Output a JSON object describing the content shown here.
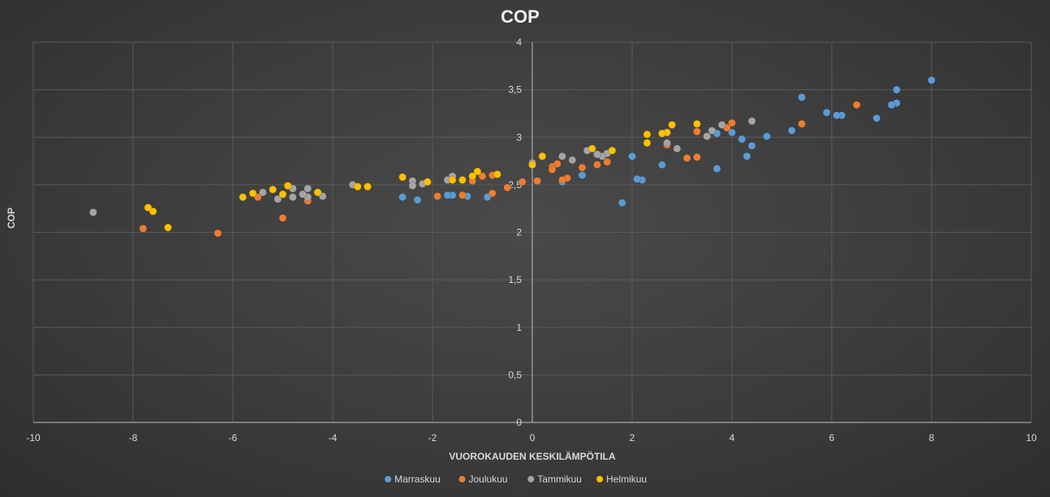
{
  "chart_data": {
    "type": "scatter",
    "title": "COP",
    "xlabel": "VUOROKAUDEN KESKILÄMPÖTILA",
    "ylabel": "COP",
    "xlim": [
      -10,
      10
    ],
    "ylim": [
      0,
      4
    ],
    "xticks": [
      -10,
      -8,
      -6,
      -4,
      -2,
      0,
      2,
      4,
      6,
      8,
      10
    ],
    "yticks": [
      0,
      0.5,
      1,
      1.5,
      2,
      2.5,
      3,
      3.5,
      4
    ],
    "xtick_labels": [
      "-10",
      "-8",
      "-6",
      "-4",
      "-2",
      "0",
      "2",
      "4",
      "6",
      "8",
      "10"
    ],
    "ytick_labels": [
      "0",
      "0,5",
      "1",
      "1,5",
      "2",
      "2,5",
      "3",
      "3,5",
      "4"
    ],
    "grid": true,
    "legend_position": "bottom",
    "series": [
      {
        "name": "Marraskuu",
        "color": "#5b9bd5",
        "points": [
          [
            8.0,
            3.6
          ],
          [
            7.3,
            3.5
          ],
          [
            7.3,
            3.36
          ],
          [
            7.2,
            3.34
          ],
          [
            6.9,
            3.2
          ],
          [
            6.2,
            3.23
          ],
          [
            6.1,
            3.23
          ],
          [
            5.9,
            3.26
          ],
          [
            5.4,
            3.42
          ],
          [
            5.2,
            3.07
          ],
          [
            4.7,
            3.01
          ],
          [
            4.4,
            2.91
          ],
          [
            4.3,
            2.8
          ],
          [
            4.2,
            2.98
          ],
          [
            4.0,
            3.05
          ],
          [
            3.7,
            3.04
          ],
          [
            3.7,
            2.67
          ],
          [
            2.6,
            2.71
          ],
          [
            2.2,
            2.55
          ],
          [
            2.1,
            2.56
          ],
          [
            2.0,
            2.8
          ],
          [
            1.8,
            2.31
          ],
          [
            1.0,
            2.6
          ],
          [
            0.6,
            2.53
          ],
          [
            -0.9,
            2.37
          ],
          [
            -1.3,
            2.38
          ],
          [
            -1.6,
            2.39
          ],
          [
            -1.7,
            2.39
          ],
          [
            -2.3,
            2.34
          ],
          [
            -2.6,
            2.37
          ]
        ]
      },
      {
        "name": "Joulukuu",
        "color": "#ed7d31",
        "points": [
          [
            6.5,
            3.34
          ],
          [
            5.4,
            3.14
          ],
          [
            4.0,
            3.15
          ],
          [
            3.9,
            3.1
          ],
          [
            3.3,
            3.06
          ],
          [
            3.3,
            2.79
          ],
          [
            3.1,
            2.78
          ],
          [
            2.7,
            2.92
          ],
          [
            1.5,
            2.74
          ],
          [
            1.3,
            2.71
          ],
          [
            1.0,
            2.68
          ],
          [
            0.7,
            2.57
          ],
          [
            0.6,
            2.55
          ],
          [
            0.5,
            2.72
          ],
          [
            0.4,
            2.69
          ],
          [
            0.4,
            2.66
          ],
          [
            0.1,
            2.54
          ],
          [
            -0.2,
            2.53
          ],
          [
            -0.5,
            2.47
          ],
          [
            -0.8,
            2.41
          ],
          [
            -0.8,
            2.6
          ],
          [
            -1.0,
            2.59
          ],
          [
            -1.2,
            2.54
          ],
          [
            -1.4,
            2.39
          ],
          [
            -1.9,
            2.38
          ],
          [
            -4.5,
            2.33
          ],
          [
            -5.0,
            2.15
          ],
          [
            -5.5,
            2.37
          ],
          [
            -6.3,
            1.99
          ],
          [
            -7.8,
            2.04
          ]
        ]
      },
      {
        "name": "Tammikuu",
        "color": "#a5a5a5",
        "points": [
          [
            4.4,
            3.17
          ],
          [
            3.8,
            3.13
          ],
          [
            3.6,
            3.07
          ],
          [
            3.5,
            3.01
          ],
          [
            2.9,
            2.88
          ],
          [
            2.7,
            2.94
          ],
          [
            1.5,
            2.83
          ],
          [
            1.4,
            2.8
          ],
          [
            1.3,
            2.82
          ],
          [
            1.1,
            2.86
          ],
          [
            0.8,
            2.76
          ],
          [
            0.6,
            2.8
          ],
          [
            0.0,
            2.73
          ],
          [
            -1.6,
            2.59
          ],
          [
            -1.7,
            2.55
          ],
          [
            -2.2,
            2.51
          ],
          [
            -2.4,
            2.54
          ],
          [
            -2.4,
            2.49
          ],
          [
            -3.6,
            2.5
          ],
          [
            -4.2,
            2.38
          ],
          [
            -4.5,
            2.46
          ],
          [
            -4.5,
            2.37
          ],
          [
            -4.6,
            2.4
          ],
          [
            -4.8,
            2.46
          ],
          [
            -4.8,
            2.37
          ],
          [
            -5.1,
            2.35
          ],
          [
            -5.4,
            2.42
          ],
          [
            -8.8,
            2.21
          ]
        ]
      },
      {
        "name": "Helmikuu",
        "color": "#ffc000",
        "points": [
          [
            3.3,
            3.14
          ],
          [
            2.8,
            3.13
          ],
          [
            2.7,
            3.05
          ],
          [
            2.6,
            3.04
          ],
          [
            2.3,
            3.03
          ],
          [
            2.3,
            2.94
          ],
          [
            1.6,
            2.86
          ],
          [
            1.2,
            2.88
          ],
          [
            0.2,
            2.8
          ],
          [
            0.0,
            2.71
          ],
          [
            -0.7,
            2.61
          ],
          [
            -1.1,
            2.64
          ],
          [
            -1.2,
            2.59
          ],
          [
            -1.4,
            2.55
          ],
          [
            -1.6,
            2.55
          ],
          [
            -2.1,
            2.53
          ],
          [
            -2.6,
            2.58
          ],
          [
            -3.3,
            2.48
          ],
          [
            -3.5,
            2.48
          ],
          [
            -4.3,
            2.42
          ],
          [
            -4.9,
            2.49
          ],
          [
            -5.0,
            2.4
          ],
          [
            -5.2,
            2.45
          ],
          [
            -5.6,
            2.41
          ],
          [
            -5.8,
            2.37
          ],
          [
            -7.3,
            2.05
          ],
          [
            -7.6,
            2.22
          ],
          [
            -7.7,
            2.26
          ]
        ]
      }
    ]
  }
}
